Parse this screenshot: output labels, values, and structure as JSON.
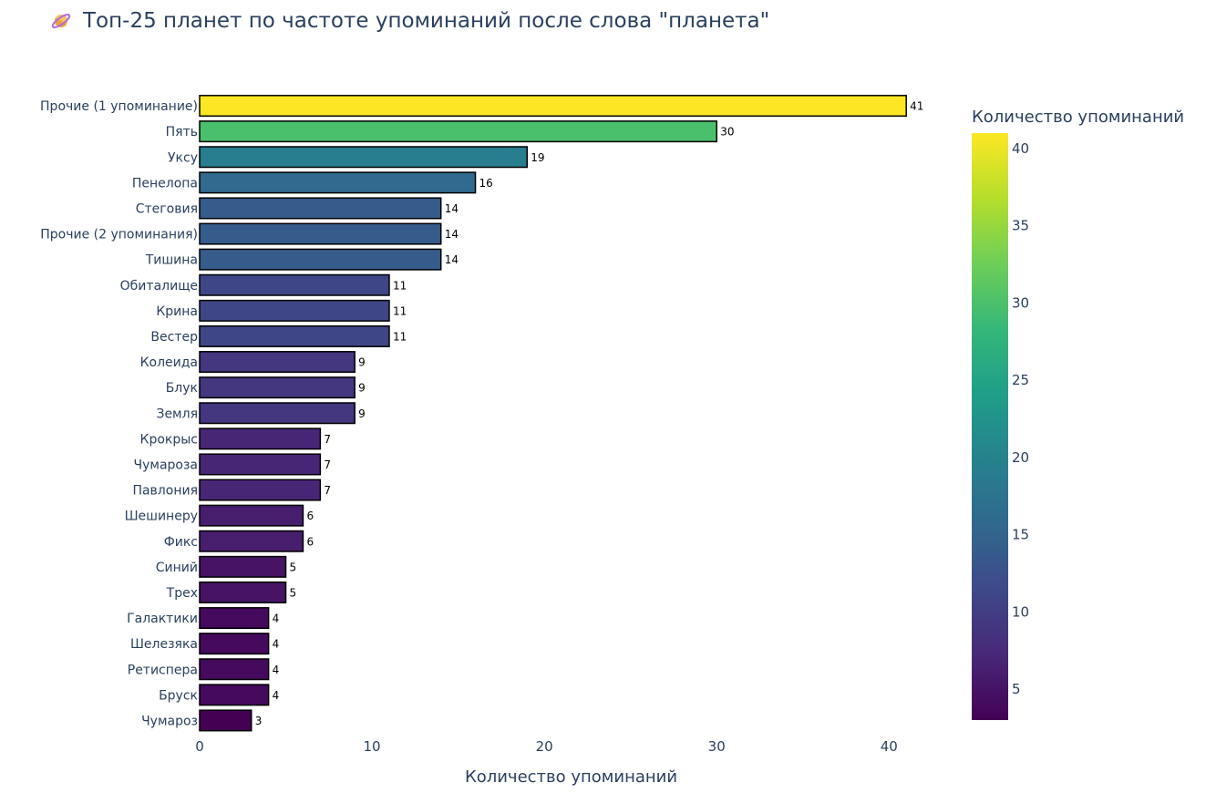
{
  "title": {
    "icon": "ringed-planet-icon",
    "text": "Топ-25 планет по частоте упоминаний после слова \"планета\""
  },
  "chart_data": {
    "type": "bar",
    "orientation": "horizontal",
    "title": "Топ-25 планет по частоте упоминаний после слова \"планета\"",
    "xlabel": "Количество упоминаний",
    "ylabel": "",
    "xlim": [
      0,
      43
    ],
    "xticks": [
      0,
      10,
      20,
      30,
      40
    ],
    "grid": false,
    "categories": [
      "Прочие (1 упоминание)",
      "Пять",
      "Уксу",
      "Пенелопа",
      "Стеговия",
      "Прочие (2 упоминания)",
      "Тишина",
      "Обиталище",
      "Крина",
      "Вестер",
      "Колеида",
      "Блук",
      "Земля",
      "Крокрыс",
      "Чумароза",
      "Павлония",
      "Шешинеру",
      "Фикс",
      "Синий",
      "Трех",
      "Галактики",
      "Шелезяка",
      "Ретиспера",
      "Бруск",
      "Чумароз"
    ],
    "values": [
      41,
      30,
      19,
      16,
      14,
      14,
      14,
      11,
      11,
      11,
      9,
      9,
      9,
      7,
      7,
      7,
      6,
      6,
      5,
      5,
      4,
      4,
      4,
      4,
      3
    ],
    "data_labels": [
      "41",
      "30",
      "19",
      "16",
      "14",
      "14",
      "14",
      "11",
      "11",
      "11",
      "9",
      "9",
      "9",
      "7",
      "7",
      "7",
      "6",
      "6",
      "5",
      "5",
      "4",
      "4",
      "4",
      "4",
      "3"
    ],
    "colorscale": "Viridis",
    "colorbar": {
      "title": "Количество упоминаний",
      "range": [
        3,
        41
      ],
      "ticks": [
        5,
        10,
        15,
        20,
        25,
        30,
        35,
        40
      ],
      "tick_labels": [
        "5",
        "10",
        "15",
        "20",
        "25",
        "30",
        "35",
        "40"
      ]
    },
    "colors": {
      "bar_outline": "#000000",
      "text": "#2a3f5f",
      "viridis": [
        "#440154",
        "#482878",
        "#3e4989",
        "#31688e",
        "#26828e",
        "#1f9e89",
        "#35b779",
        "#6ece58",
        "#b5de2b",
        "#fde725"
      ]
    }
  }
}
